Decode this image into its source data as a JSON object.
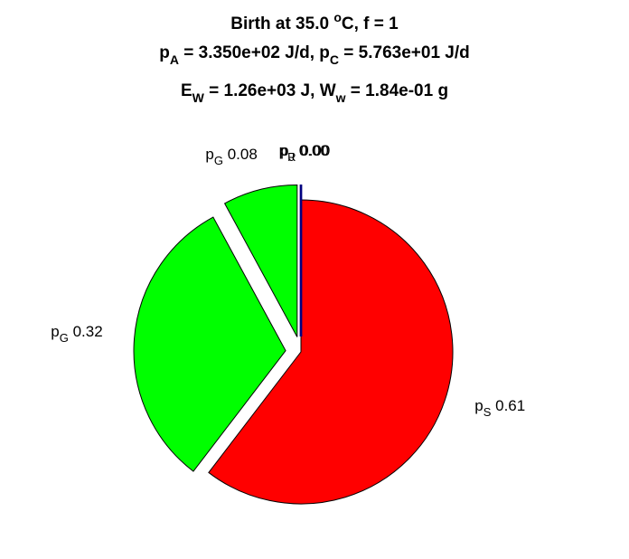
{
  "chart_data": {
    "type": "pie",
    "title": {
      "line1": {
        "pre": "Birth at 35.0 ",
        "sup": "o",
        "post": "C, f = 1"
      },
      "line2": {
        "a_sym": "p",
        "a_sub": "A",
        "a_val": " = 3.350e+02 J/d, ",
        "c_sym": "p",
        "c_sub": "C",
        "c_val": " = 5.763e+01 J/d"
      },
      "line3": {
        "e_sym": "E",
        "e_sub": "W",
        "e_val": " = 1.26e+03 J, ",
        "w_sym": "W",
        "w_sub": "w",
        "w_val": " = 1.84e-01 g"
      }
    },
    "slices": [
      {
        "sym": "p",
        "sub": "S",
        "value": 0.61,
        "label": " 0.61",
        "color": "#ff0000",
        "exploded": false
      },
      {
        "sym": "p",
        "sub": "G",
        "value": 0.32,
        "label": " 0.32",
        "color": "#00ff00",
        "exploded": true
      },
      {
        "sym": "p",
        "sub": "G",
        "value": 0.08,
        "label": " 0.08",
        "color": "#00ff00",
        "exploded": true
      },
      {
        "sym": "p",
        "sub": "R",
        "value": 0.0,
        "label": " 0.00",
        "color": "#000080",
        "exploded": true
      },
      {
        "sym": "p",
        "sub": "J",
        "value": 0.0,
        "label": " 0.00",
        "color": "#000080",
        "exploded": true
      }
    ],
    "start_angle_deg": 90,
    "direction": "clockwise",
    "legend": "none"
  }
}
